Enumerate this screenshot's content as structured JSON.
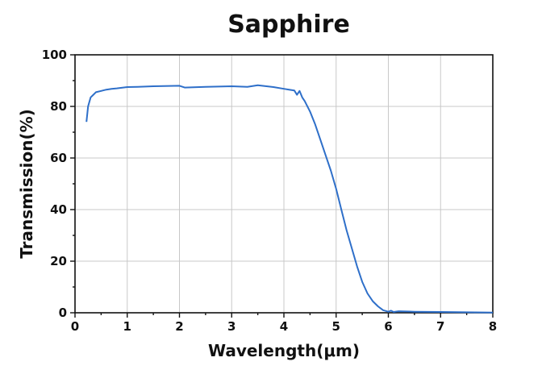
{
  "chart_data": {
    "type": "line",
    "title": "Sapphire",
    "xlabel": "Wavelength(μm)",
    "ylabel": "Transmission(%)",
    "xlim": [
      0,
      8
    ],
    "ylim": [
      0,
      100
    ],
    "x_ticks": [
      0,
      1,
      2,
      3,
      4,
      5,
      6,
      7,
      8
    ],
    "y_ticks": [
      0,
      20,
      40,
      60,
      80,
      100
    ],
    "grid": true,
    "legend": "none",
    "line_color": "#2e6fc9",
    "series": [
      {
        "x": [
          0.22,
          0.25,
          0.3,
          0.35,
          0.4,
          0.5,
          0.6,
          0.7,
          0.8,
          1.0,
          1.2,
          1.5,
          2.0,
          2.1,
          2.5,
          3.0,
          3.3,
          3.5,
          3.8,
          4.0,
          4.1,
          4.2,
          4.25,
          4.3,
          4.35,
          4.4,
          4.5,
          4.6,
          4.7,
          4.8,
          4.9,
          5.0,
          5.1,
          5.2,
          5.3,
          5.4,
          5.5,
          5.6,
          5.7,
          5.8,
          5.9,
          6.0,
          6.05,
          6.1,
          6.2,
          6.5,
          7.0,
          7.5,
          8.0
        ],
        "y": [
          74,
          80,
          83.5,
          84.5,
          85.5,
          86,
          86.5,
          86.8,
          87,
          87.5,
          87.6,
          87.8,
          88,
          87.3,
          87.6,
          87.8,
          87.6,
          88.2,
          87.5,
          86.8,
          86.5,
          86.2,
          84.5,
          86,
          83.5,
          82,
          78,
          73,
          67,
          61,
          55,
          48,
          40,
          32,
          25,
          18,
          12,
          7.5,
          4.5,
          2.5,
          1,
          0.4,
          0.8,
          0.3,
          0.6,
          0.4,
          0.3,
          0.2,
          0.1
        ]
      }
    ]
  }
}
